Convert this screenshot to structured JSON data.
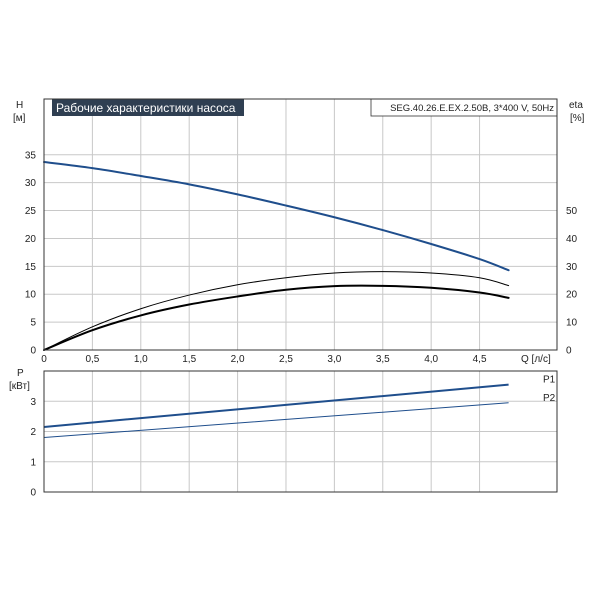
{
  "title_box": {
    "title": "Рабочие характеристики насоса",
    "model": "SEG.40.26.E.EX.2.50B, 3*400 V, 50Hz"
  },
  "colors": {
    "title_bg": "#2f3f52",
    "title_fg": "#ffffff",
    "head_curve": "#1f4e8c",
    "eta_curve": "#000000",
    "power_curve": "#1f4e8c",
    "grid": "#c8c8c8"
  },
  "chart_data": [
    {
      "type": "line",
      "name": "head-and-efficiency",
      "xlabel": "Q [л/с]",
      "xlim": [
        0,
        5.3
      ],
      "xticks": [
        0,
        0.5,
        1.0,
        1.5,
        2.0,
        2.5,
        3.0,
        3.5,
        4.0,
        4.5
      ],
      "xtick_labels": [
        "0",
        "0,5",
        "1,0",
        "1,5",
        "2,0",
        "2,5",
        "3,0",
        "3,5",
        "4,0",
        "4,5"
      ],
      "ylabel_left": "H",
      "ylabel_left_unit": "[м]",
      "ylim_left": [
        0,
        45
      ],
      "yticks_left": [
        0,
        5,
        10,
        15,
        20,
        25,
        30,
        35
      ],
      "ylabel_right": "eta",
      "ylabel_right_unit": "[%]",
      "ylim_right": [
        0,
        90
      ],
      "yticks_right": [
        0,
        10,
        20,
        30,
        40,
        50
      ],
      "grid": true,
      "series": [
        {
          "axis": "left",
          "color": "#1f4e8c",
          "x": [
            0,
            0.5,
            1.0,
            1.5,
            2.0,
            2.5,
            3.0,
            3.5,
            4.0,
            4.5,
            4.8
          ],
          "y": [
            33.7,
            32.6,
            31.2,
            29.7,
            27.9,
            25.9,
            23.8,
            21.5,
            19.0,
            16.3,
            14.3
          ]
        },
        {
          "axis": "right",
          "color": "#000000",
          "width": 1,
          "x": [
            0,
            0.5,
            1.0,
            1.5,
            2.0,
            2.5,
            3.0,
            3.5,
            4.0,
            4.5,
            4.8
          ],
          "y": [
            0,
            8.3,
            14.8,
            19.7,
            23.4,
            25.9,
            27.6,
            28.1,
            27.6,
            25.9,
            23.1
          ]
        },
        {
          "axis": "right",
          "color": "#000000",
          "width": 2,
          "x": [
            0,
            0.5,
            1.0,
            1.5,
            2.0,
            2.5,
            3.0,
            3.5,
            4.0,
            4.5,
            4.8
          ],
          "y": [
            0,
            7.1,
            12.4,
            16.3,
            19.2,
            21.6,
            22.9,
            23.0,
            22.3,
            20.6,
            18.7
          ]
        }
      ]
    },
    {
      "type": "line",
      "name": "power",
      "xlim": [
        0,
        5.3
      ],
      "xticks": [
        0,
        0.5,
        1.0,
        1.5,
        2.0,
        2.5,
        3.0,
        3.5,
        4.0,
        4.5
      ],
      "ylabel": "P",
      "ylabel_unit": "[кВт]",
      "ylim": [
        0,
        4
      ],
      "yticks": [
        0,
        1,
        2,
        3
      ],
      "grid": true,
      "series": [
        {
          "name": "P1",
          "color": "#1f4e8c",
          "width": 2,
          "x": [
            0,
            4.8
          ],
          "y": [
            2.15,
            3.55
          ]
        },
        {
          "name": "P2",
          "color": "#1f4e8c",
          "width": 1,
          "x": [
            0,
            4.8
          ],
          "y": [
            1.8,
            2.95
          ]
        }
      ]
    }
  ]
}
